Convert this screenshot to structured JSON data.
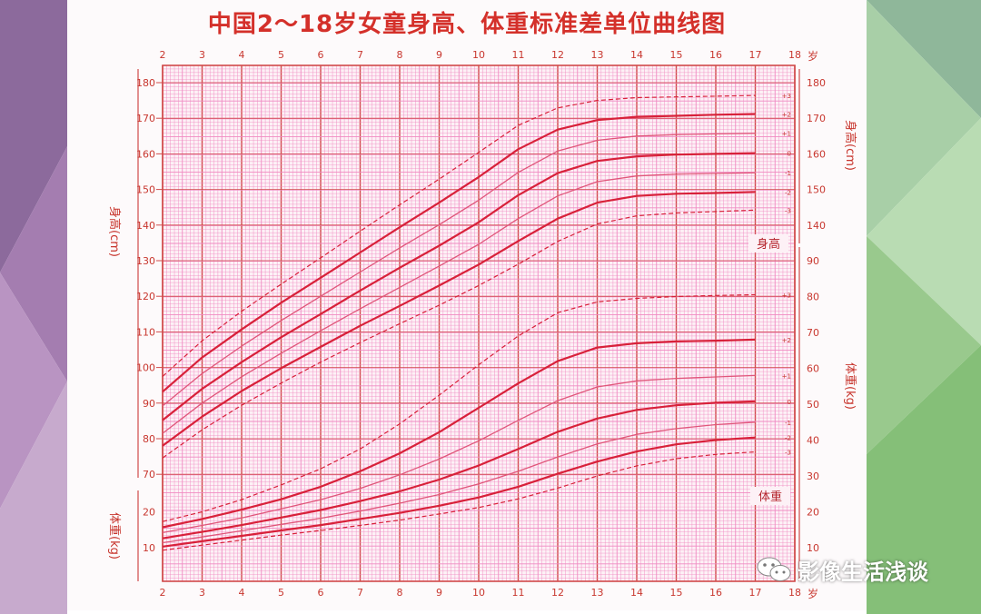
{
  "colors": {
    "grid": "#f08ac2",
    "grid_major": "#d14a4a",
    "axis_text": "#c8372f",
    "curve_main": "#d8213a",
    "curve_mid": "#e0567a",
    "curve_dash": "#d8213a",
    "title": "#d4302a"
  },
  "title": "中国2～18岁女童身高、体重标准差单位曲线图",
  "watermark": {
    "text": "影像生活浅谈",
    "icon": "wechat-icon"
  },
  "chart_data": [
    {
      "type": "line",
      "name_label": "身高",
      "ylabel": "身高(cm)",
      "x_unit": "岁",
      "x_ticks": [
        "2",
        "3",
        "4",
        "5",
        "6",
        "7",
        "8",
        "9",
        "10",
        "11",
        "12",
        "13",
        "14",
        "15",
        "16",
        "17",
        "18"
      ],
      "xlim": [
        2,
        18
      ],
      "y_ticks": [
        "70",
        "80",
        "90",
        "100",
        "110",
        "120",
        "130",
        "140",
        "150",
        "160",
        "170",
        "180"
      ],
      "ylim": [
        65,
        185
      ],
      "x": [
        2,
        3,
        4,
        5,
        6,
        7,
        8,
        9,
        10,
        11,
        12,
        13,
        14,
        15,
        16,
        17
      ],
      "series": [
        {
          "name": "+3",
          "values": [
            97.5,
            107.5,
            115.8,
            123.4,
            130.8,
            138.3,
            145.7,
            152.9,
            160.4,
            168.0,
            172.9,
            175.0,
            175.8,
            176.0,
            176.2,
            176.4
          ]
        },
        {
          "name": "+2",
          "values": [
            93.2,
            102.8,
            110.7,
            118.2,
            125.2,
            132.3,
            139.4,
            146.3,
            153.5,
            161.3,
            166.8,
            169.5,
            170.4,
            170.7,
            171.0,
            171.2
          ]
        },
        {
          "name": "+1",
          "values": [
            89.2,
            98.3,
            106.0,
            113.2,
            120.0,
            126.8,
            133.6,
            140.1,
            147.0,
            154.8,
            160.8,
            163.8,
            165.0,
            165.4,
            165.6,
            165.8
          ]
        },
        {
          "name": "0",
          "values": [
            85.2,
            94.0,
            101.5,
            108.5,
            115.0,
            121.6,
            128.0,
            134.2,
            140.8,
            148.4,
            154.6,
            158.0,
            159.3,
            159.8,
            160.0,
            160.2
          ]
        },
        {
          "name": "-1",
          "values": [
            81.5,
            90.0,
            97.4,
            104.0,
            110.3,
            116.5,
            122.5,
            128.5,
            134.6,
            141.8,
            148.2,
            152.2,
            153.8,
            154.3,
            154.5,
            154.7
          ]
        },
        {
          "name": "-2",
          "values": [
            78.0,
            86.2,
            93.4,
            99.8,
            105.8,
            111.7,
            117.3,
            123.0,
            128.9,
            135.5,
            141.8,
            146.3,
            148.2,
            148.8,
            149.0,
            149.3
          ]
        },
        {
          "name": "-3",
          "values": [
            74.6,
            82.5,
            89.4,
            95.6,
            101.5,
            107.0,
            112.3,
            117.5,
            123.0,
            129.0,
            135.4,
            140.3,
            142.6,
            143.4,
            143.8,
            144.2
          ]
        }
      ]
    },
    {
      "type": "line",
      "name_label": "体重",
      "ylabel": "体重(kg)",
      "x_unit": "岁",
      "x_ticks": [
        "2",
        "3",
        "4",
        "5",
        "6",
        "7",
        "8",
        "9",
        "10",
        "11",
        "12",
        "13",
        "14",
        "15",
        "16",
        "17",
        "18"
      ],
      "xlim": [
        2,
        18
      ],
      "y_ticks_left": [
        "10",
        "20"
      ],
      "y_ticks_right": [
        "10",
        "20",
        "30",
        "40",
        "50",
        "60",
        "70",
        "80",
        "90"
      ],
      "ylim": [
        5,
        95
      ],
      "x": [
        2,
        3,
        4,
        5,
        6,
        7,
        8,
        9,
        10,
        11,
        12,
        13,
        14,
        15,
        16,
        17
      ],
      "series": [
        {
          "name": "+3",
          "values": [
            17.3,
            20.0,
            23.4,
            27.5,
            32.0,
            37.5,
            44.5,
            52.5,
            61.0,
            69.0,
            75.5,
            78.5,
            79.5,
            80.0,
            80.3,
            80.5
          ]
        },
        {
          "name": "+2",
          "values": [
            15.7,
            18.0,
            20.6,
            23.5,
            27.0,
            31.3,
            36.3,
            42.2,
            49.0,
            55.8,
            62.0,
            65.8,
            67.0,
            67.5,
            67.7,
            68.0
          ]
        },
        {
          "name": "+1",
          "values": [
            14.2,
            16.2,
            18.3,
            20.8,
            23.4,
            26.5,
            30.3,
            34.7,
            39.8,
            45.5,
            51.0,
            54.8,
            56.5,
            57.2,
            57.6,
            58.0
          ]
        },
        {
          "name": "0",
          "values": [
            12.6,
            14.4,
            16.3,
            18.4,
            20.5,
            23.0,
            25.7,
            29.0,
            32.9,
            37.5,
            42.3,
            46.0,
            48.4,
            49.7,
            50.4,
            50.8
          ]
        },
        {
          "name": "-1",
          "values": [
            11.4,
            13.0,
            14.7,
            16.5,
            18.2,
            20.2,
            22.4,
            24.8,
            27.8,
            31.3,
            35.3,
            38.9,
            41.6,
            43.2,
            44.3,
            45.0
          ]
        },
        {
          "name": "-2",
          "values": [
            10.3,
            11.8,
            13.3,
            14.8,
            16.3,
            18.0,
            19.7,
            21.7,
            24.0,
            27.0,
            30.6,
            34.0,
            36.8,
            38.8,
            40.0,
            40.7
          ]
        },
        {
          "name": "-3",
          "values": [
            9.3,
            10.7,
            12.1,
            13.5,
            14.8,
            16.2,
            17.7,
            19.4,
            21.2,
            23.6,
            26.6,
            30.0,
            32.8,
            34.8,
            36.0,
            36.7
          ]
        }
      ]
    }
  ]
}
